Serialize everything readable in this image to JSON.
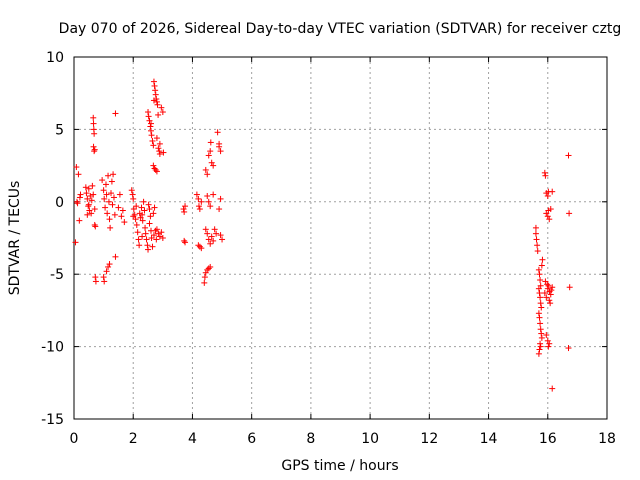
{
  "chart_data": {
    "type": "scatter",
    "title": "Day 070 of 2026, Sidereal Day-to-day VTEC variation (SDTVAR) for receiver cztg",
    "xlabel": "GPS time / hours",
    "ylabel": "SDTVAR / TECUs",
    "xlim": [
      0,
      18
    ],
    "ylim": [
      -15,
      10
    ],
    "xticks": [
      0,
      2,
      4,
      6,
      8,
      10,
      12,
      14,
      16,
      18
    ],
    "yticks": [
      -15,
      -10,
      -5,
      0,
      5,
      10
    ],
    "xtick_labels": [
      "0",
      "2",
      "4",
      "6",
      "8",
      "10",
      "12",
      "14",
      "16",
      "18"
    ],
    "ytick_labels": [
      "-15",
      "-10",
      "-5",
      "0",
      "5",
      "10"
    ],
    "grid": true,
    "marker": "+",
    "color": "#ff0000",
    "series": [
      {
        "name": "SDTVAR",
        "points": [
          [
            0.08,
            2.4
          ],
          [
            0.12,
            -0.1
          ],
          [
            0.15,
            1.9
          ],
          [
            0.18,
            -1.3
          ],
          [
            0.2,
            0.3
          ],
          [
            0.22,
            0.5
          ],
          [
            0.05,
            -2.8
          ],
          [
            0.1,
            0.0
          ],
          [
            0.4,
            1.0
          ],
          [
            0.42,
            0.6
          ],
          [
            0.45,
            0.2
          ],
          [
            0.48,
            -0.3
          ],
          [
            0.5,
            0.9
          ],
          [
            0.52,
            -0.6
          ],
          [
            0.55,
            0.4
          ],
          [
            0.58,
            -0.8
          ],
          [
            0.6,
            0.1
          ],
          [
            0.62,
            1.1
          ],
          [
            0.45,
            -0.9
          ],
          [
            0.5,
            -0.2
          ],
          [
            0.65,
            5.8
          ],
          [
            0.66,
            5.4
          ],
          [
            0.67,
            5.0
          ],
          [
            0.68,
            4.7
          ],
          [
            0.66,
            3.8
          ],
          [
            0.68,
            3.5
          ],
          [
            0.7,
            3.6
          ],
          [
            0.7,
            -1.6
          ],
          [
            0.72,
            -1.7
          ],
          [
            0.72,
            -5.2
          ],
          [
            0.74,
            -5.5
          ],
          [
            0.65,
            0.5
          ],
          [
            0.7,
            -0.5
          ],
          [
            0.95,
            1.5
          ],
          [
            1.0,
            0.8
          ],
          [
            1.02,
            0.2
          ],
          [
            1.05,
            -0.4
          ],
          [
            1.08,
            1.2
          ],
          [
            1.1,
            0.5
          ],
          [
            1.12,
            -0.8
          ],
          [
            1.15,
            1.8
          ],
          [
            1.18,
            0.0
          ],
          [
            1.2,
            -1.2
          ],
          [
            1.22,
            -1.8
          ],
          [
            1.25,
            0.6
          ],
          [
            1.28,
            1.4
          ],
          [
            1.3,
            -0.2
          ],
          [
            1.32,
            1.9
          ],
          [
            1.35,
            0.3
          ],
          [
            1.38,
            -0.9
          ],
          [
            1.0,
            -5.2
          ],
          [
            1.02,
            -5.5
          ],
          [
            1.1,
            -4.8
          ],
          [
            1.15,
            -4.5
          ],
          [
            1.2,
            -4.3
          ],
          [
            1.4,
            6.1
          ],
          [
            1.4,
            -3.8
          ],
          [
            1.5,
            -0.4
          ],
          [
            1.55,
            0.5
          ],
          [
            1.6,
            -1.0
          ],
          [
            1.65,
            -0.6
          ],
          [
            1.7,
            -1.4
          ],
          [
            1.95,
            0.8
          ],
          [
            1.98,
            0.5
          ],
          [
            2.0,
            0.2
          ],
          [
            2.02,
            -0.5
          ],
          [
            2.05,
            -0.9
          ],
          [
            2.08,
            -1.2
          ],
          [
            2.1,
            -0.3
          ],
          [
            2.12,
            -1.6
          ],
          [
            2.15,
            -2.1
          ],
          [
            2.18,
            -2.6
          ],
          [
            2.2,
            -3.0
          ],
          [
            2.22,
            -0.8
          ],
          [
            2.25,
            -1.1
          ],
          [
            2.28,
            -0.4
          ],
          [
            2.3,
            -0.9
          ],
          [
            2.32,
            -1.3
          ],
          [
            2.35,
            0.0
          ],
          [
            2.38,
            -0.6
          ],
          [
            2.4,
            -1.8
          ],
          [
            2.42,
            -2.2
          ],
          [
            2.45,
            -2.6
          ],
          [
            2.48,
            -3.0
          ],
          [
            2.5,
            -3.3
          ],
          [
            2.52,
            -0.2
          ],
          [
            2.55,
            -0.5
          ],
          [
            2.58,
            -1.0
          ],
          [
            2.6,
            -2.0
          ],
          [
            2.62,
            -2.5
          ],
          [
            2.65,
            -3.1
          ],
          [
            2.68,
            -0.8
          ],
          [
            2.7,
            -2.3
          ],
          [
            2.72,
            -0.4
          ],
          [
            2.75,
            -2.0
          ],
          [
            2.78,
            -2.6
          ],
          [
            2.8,
            -1.9
          ],
          [
            2.85,
            -2.2
          ],
          [
            2.9,
            -2.4
          ],
          [
            2.95,
            -2.1
          ],
          [
            3.0,
            -2.5
          ],
          [
            2.0,
            -1.0
          ],
          [
            2.3,
            -2.4
          ],
          [
            2.55,
            -1.5
          ],
          [
            2.5,
            6.2
          ],
          [
            2.52,
            5.9
          ],
          [
            2.55,
            5.6
          ],
          [
            2.58,
            5.2
          ],
          [
            2.6,
            4.9
          ],
          [
            2.62,
            4.6
          ],
          [
            2.65,
            4.2
          ],
          [
            2.68,
            3.9
          ],
          [
            2.7,
            8.3
          ],
          [
            2.72,
            8.0
          ],
          [
            2.74,
            7.7
          ],
          [
            2.76,
            7.4
          ],
          [
            2.78,
            7.1
          ],
          [
            2.8,
            6.9
          ],
          [
            2.82,
            6.7
          ],
          [
            2.85,
            3.7
          ],
          [
            2.88,
            3.5
          ],
          [
            2.9,
            3.3
          ],
          [
            2.95,
            6.5
          ],
          [
            3.0,
            6.2
          ],
          [
            3.02,
            3.4
          ],
          [
            2.68,
            2.5
          ],
          [
            2.72,
            2.3
          ],
          [
            2.76,
            2.2
          ],
          [
            2.8,
            2.1
          ],
          [
            2.6,
            5.4
          ],
          [
            2.7,
            7.0
          ],
          [
            2.8,
            4.4
          ],
          [
            2.9,
            4.0
          ],
          [
            2.84,
            6.0
          ],
          [
            3.7,
            -0.5
          ],
          [
            3.72,
            -0.7
          ],
          [
            3.75,
            -0.3
          ],
          [
            3.72,
            -2.7
          ],
          [
            3.75,
            -2.8
          ],
          [
            4.15,
            0.5
          ],
          [
            4.2,
            0.2
          ],
          [
            4.22,
            -0.3
          ],
          [
            4.25,
            -0.5
          ],
          [
            4.3,
            0.0
          ],
          [
            4.2,
            -3.0
          ],
          [
            4.25,
            -3.1
          ],
          [
            4.3,
            -3.2
          ],
          [
            4.4,
            -5.6
          ],
          [
            4.42,
            -5.2
          ],
          [
            4.45,
            -4.9
          ],
          [
            4.5,
            -4.7
          ],
          [
            4.55,
            -4.6
          ],
          [
            4.6,
            -4.5
          ],
          [
            4.45,
            2.2
          ],
          [
            4.5,
            1.9
          ],
          [
            4.55,
            3.2
          ],
          [
            4.6,
            3.5
          ],
          [
            4.62,
            4.1
          ],
          [
            4.65,
            2.7
          ],
          [
            4.7,
            2.5
          ],
          [
            4.5,
            0.4
          ],
          [
            4.55,
            0.0
          ],
          [
            4.6,
            -0.3
          ],
          [
            4.45,
            -1.9
          ],
          [
            4.5,
            -2.2
          ],
          [
            4.55,
            -2.6
          ],
          [
            4.6,
            -2.9
          ],
          [
            4.65,
            -2.4
          ],
          [
            4.7,
            -2.7
          ],
          [
            4.75,
            -1.9
          ],
          [
            4.8,
            -2.2
          ],
          [
            4.85,
            4.8
          ],
          [
            4.9,
            4.0
          ],
          [
            4.9,
            3.8
          ],
          [
            4.95,
            3.5
          ],
          [
            4.9,
            -0.5
          ],
          [
            4.95,
            -2.3
          ],
          [
            5.0,
            -2.6
          ],
          [
            4.95,
            0.2
          ],
          [
            4.7,
            0.5
          ],
          [
            15.6,
            -2.2
          ],
          [
            15.62,
            -2.6
          ],
          [
            15.64,
            -3.0
          ],
          [
            15.66,
            -3.4
          ],
          [
            15.6,
            -1.8
          ],
          [
            15.7,
            -4.7
          ],
          [
            15.72,
            -5.0
          ],
          [
            15.74,
            -5.4
          ],
          [
            15.76,
            -5.8
          ],
          [
            15.7,
            -6.0
          ],
          [
            15.72,
            -6.3
          ],
          [
            15.74,
            -6.6
          ],
          [
            15.76,
            -7.0
          ],
          [
            15.78,
            -7.3
          ],
          [
            15.7,
            -7.7
          ],
          [
            15.72,
            -8.0
          ],
          [
            15.74,
            -8.4
          ],
          [
            15.76,
            -8.8
          ],
          [
            15.78,
            -9.1
          ],
          [
            15.8,
            -9.4
          ],
          [
            15.74,
            -9.8
          ],
          [
            15.72,
            -10.2
          ],
          [
            15.7,
            -10.5
          ],
          [
            15.76,
            -10.0
          ],
          [
            15.8,
            -4.4
          ],
          [
            15.82,
            -4.0
          ],
          [
            15.9,
            2.0
          ],
          [
            15.92,
            1.8
          ],
          [
            15.95,
            0.6
          ],
          [
            16.0,
            0.4
          ],
          [
            16.02,
            0.7
          ],
          [
            15.95,
            -0.8
          ],
          [
            16.0,
            -1.0
          ],
          [
            16.02,
            -0.6
          ],
          [
            16.05,
            -1.2
          ],
          [
            16.1,
            -0.5
          ],
          [
            16.15,
            0.7
          ],
          [
            15.9,
            -6.3
          ],
          [
            15.95,
            -6.6
          ],
          [
            16.0,
            -6.0
          ],
          [
            16.02,
            -5.8
          ],
          [
            16.05,
            -6.8
          ],
          [
            16.08,
            -7.0
          ],
          [
            16.1,
            -6.4
          ],
          [
            16.12,
            -6.1
          ],
          [
            16.15,
            -5.9
          ],
          [
            15.92,
            -5.5
          ],
          [
            15.98,
            -5.7
          ],
          [
            16.06,
            -6.2
          ],
          [
            15.95,
            -9.2
          ],
          [
            16.0,
            -9.6
          ],
          [
            16.02,
            -10.0
          ],
          [
            16.05,
            -9.8
          ],
          [
            16.15,
            -12.9
          ],
          [
            16.7,
            3.2
          ],
          [
            16.72,
            -0.8
          ],
          [
            16.74,
            -5.9
          ],
          [
            16.7,
            -10.1
          ]
        ]
      }
    ]
  }
}
